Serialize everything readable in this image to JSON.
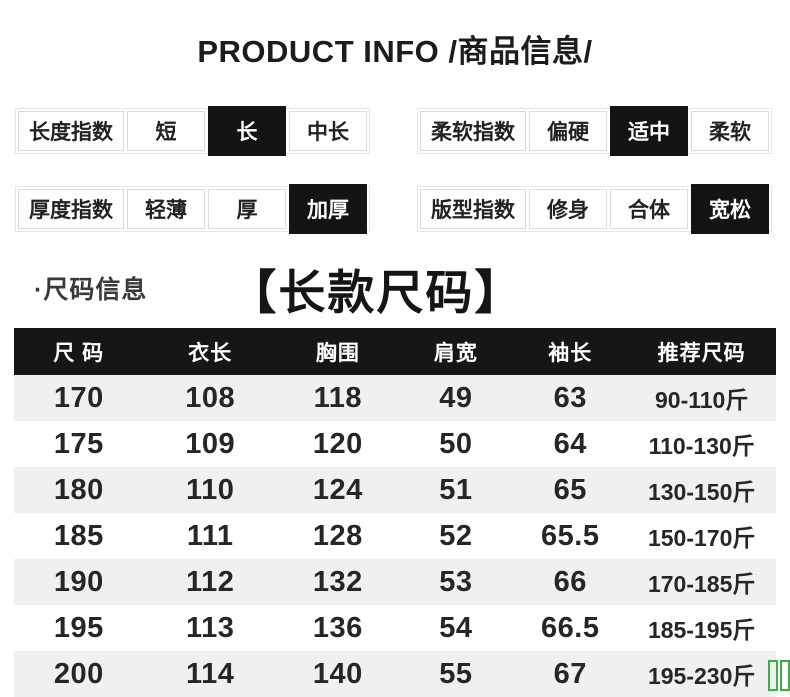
{
  "title": "PRODUCT INFO /商品信息/",
  "indices": [
    {
      "label": "长度指数",
      "options": [
        {
          "text": "短",
          "selected": false
        },
        {
          "text": "长",
          "selected": true
        },
        {
          "text": "中长",
          "selected": false
        }
      ]
    },
    {
      "label": "柔软指数",
      "options": [
        {
          "text": "偏硬",
          "selected": false
        },
        {
          "text": "适中",
          "selected": true
        },
        {
          "text": "柔软",
          "selected": false
        }
      ]
    },
    {
      "label": "厚度指数",
      "options": [
        {
          "text": "轻薄",
          "selected": false
        },
        {
          "text": "厚",
          "selected": false
        },
        {
          "text": "加厚",
          "selected": true
        }
      ]
    },
    {
      "label": "版型指数",
      "options": [
        {
          "text": "修身",
          "selected": false
        },
        {
          "text": "合体",
          "selected": false
        },
        {
          "text": "宽松",
          "selected": true
        }
      ]
    }
  ],
  "size_section": {
    "bullet_label": "·尺码信息",
    "heading": "【长款尺码】"
  },
  "size_table": {
    "headers": [
      "尺 码",
      "衣长",
      "胸围",
      "肩宽",
      "袖长",
      "推荐尺码"
    ],
    "rows": [
      [
        "170",
        "108",
        "118",
        "49",
        "63",
        "90-110斤"
      ],
      [
        "175",
        "109",
        "120",
        "50",
        "64",
        "110-130斤"
      ],
      [
        "180",
        "110",
        "124",
        "51",
        "65",
        "130-150斤"
      ],
      [
        "185",
        "111",
        "128",
        "52",
        "65.5",
        "150-170斤"
      ],
      [
        "190",
        "112",
        "132",
        "53",
        "66",
        "170-185斤"
      ],
      [
        "195",
        "113",
        "136",
        "54",
        "66.5",
        "185-195斤"
      ],
      [
        "200",
        "114",
        "140",
        "55",
        "67",
        "195-230斤"
      ]
    ]
  },
  "colors": {
    "selected_chip_bg": "#141414",
    "table_header_bg": "#161616",
    "row_alt_bg": "#f0f0f0",
    "green_marker": "#3fae49"
  }
}
